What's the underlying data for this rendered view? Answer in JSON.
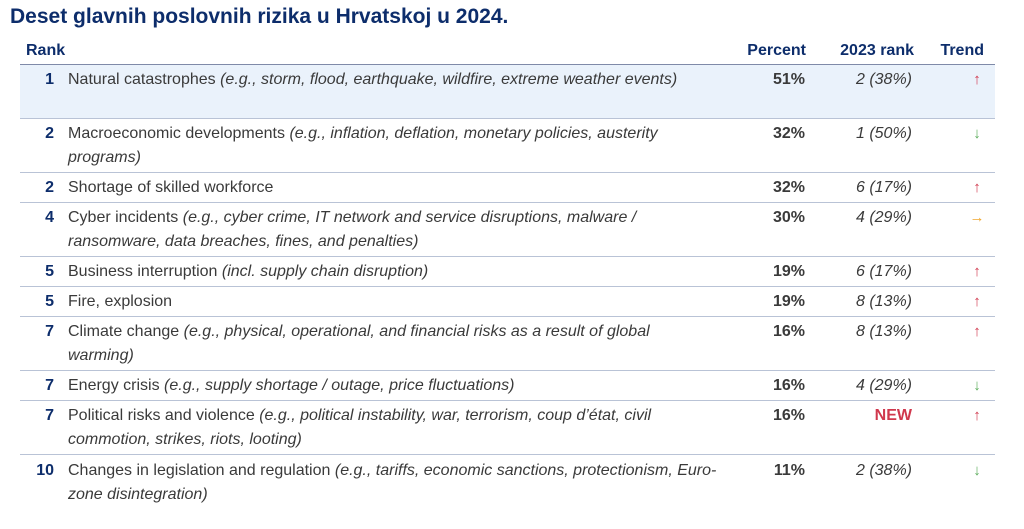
{
  "title": "Deset glavnih poslovnih rizika u Hrvatskoj u 2024.",
  "columns": {
    "rank": "Rank",
    "percent": "Percent",
    "rank_2023": "2023 rank",
    "trend": "Trend"
  },
  "trend_colors": {
    "up": "#d0384d",
    "down": "#5aab5a",
    "flat": "#f0a830"
  },
  "chart_data": {
    "type": "table",
    "title": "Deset glavnih poslovnih rizika u Hrvatskoj u 2024.",
    "columns": [
      "Rank",
      "Percent",
      "2023 rank",
      "Trend"
    ],
    "rows": [
      {
        "rank": "1",
        "name": "Natural catastrophes",
        "example": "(e.g., storm, flood, earthquake, wildfire, extreme weather events)",
        "percent": "51%",
        "rank_2023": "2 (38%)",
        "trend": "up",
        "trend_icon": "↑",
        "highlight": true
      },
      {
        "rank": "2",
        "name": "Macroeconomic developments",
        "example": "(e.g., inflation, deflation, monetary policies, austerity programs)",
        "percent": "32%",
        "rank_2023": "1 (50%)",
        "trend": "down",
        "trend_icon": "↓"
      },
      {
        "rank": "2",
        "name": "Shortage of skilled workforce",
        "example": "",
        "percent": "32%",
        "rank_2023": "6 (17%)",
        "trend": "up",
        "trend_icon": "↑"
      },
      {
        "rank": "4",
        "name": "Cyber incidents",
        "example": "(e.g., cyber crime, IT network and service disruptions, malware / ransomware, data breaches, fines, and penalties)",
        "percent": "30%",
        "rank_2023": "4 (29%)",
        "trend": "flat",
        "trend_icon": "→"
      },
      {
        "rank": "5",
        "name": "Business interruption",
        "example": "(incl. supply chain disruption)",
        "percent": "19%",
        "rank_2023": "6 (17%)",
        "trend": "up",
        "trend_icon": "↑"
      },
      {
        "rank": "5",
        "name": "Fire, explosion",
        "example": "",
        "percent": "19%",
        "rank_2023": "8 (13%)",
        "trend": "up",
        "trend_icon": "↑"
      },
      {
        "rank": "7",
        "name": "Climate change",
        "example": "(e.g., physical, operational, and financial risks as a result of global warming)",
        "percent": "16%",
        "rank_2023": "8 (13%)",
        "trend": "up",
        "trend_icon": "↑"
      },
      {
        "rank": "7",
        "name": "Energy crisis",
        "example": "(e.g., supply shortage / outage, price fluctuations)",
        "percent": "16%",
        "rank_2023": "4 (29%)",
        "trend": "down",
        "trend_icon": "↓"
      },
      {
        "rank": "7",
        "name": "Political risks and violence",
        "example": "(e.g., political instability, war, terrorism, coup d’état, civil commotion, strikes, riots, looting)",
        "percent": "16%",
        "rank_2023": "NEW",
        "trend": "up",
        "trend_icon": "↑",
        "is_new": true
      },
      {
        "rank": "10",
        "name": "Changes in legislation and regulation",
        "example": "(e.g., tariffs, economic sanctions, protectionism, Euro-zone disintegration)",
        "percent": "11%",
        "rank_2023": "2 (38%)",
        "trend": "down",
        "trend_icon": "↓"
      }
    ]
  }
}
